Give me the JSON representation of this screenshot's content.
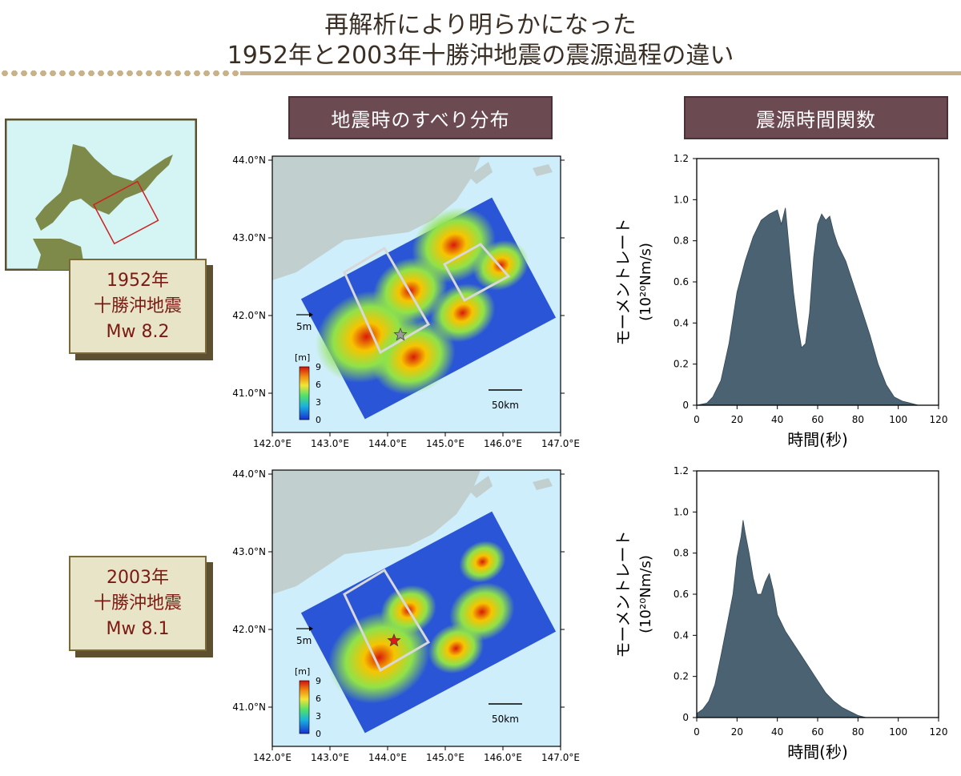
{
  "title": {
    "line1": "再解析により明らかになった",
    "line2": "1952年と2003年十勝沖地震の震源過程の違い"
  },
  "headers": {
    "slip": "地震時のすべり分布",
    "stf": "震源時間関数"
  },
  "events": [
    {
      "year": "1952年",
      "name": "十勝沖地震",
      "mag": "Mw 8.2"
    },
    {
      "year": "2003年",
      "name": "十勝沖地震",
      "mag": "Mw 8.1"
    }
  ],
  "map": {
    "lat_labels": [
      "44.0°N",
      "43.0°N",
      "42.0°N",
      "41.0°N"
    ],
    "lon_labels": [
      "142.0°E",
      "143.0°E",
      "144.0°E",
      "145.0°E",
      "146.0°E",
      "147.0°E"
    ],
    "arrow_label": "5m",
    "scale_label": "50km",
    "colorbar_unit": "[m]",
    "colorbar_ticks": [
      "9",
      "6",
      "3",
      "0"
    ]
  },
  "chart_data": [
    {
      "type": "area",
      "event": "1952",
      "xlabel": "時間(秒)",
      "ylabel": "モーメントレート",
      "yunit": "(10²⁰Nm/s)",
      "xlim": [
        0,
        120
      ],
      "ylim": [
        0,
        1.2
      ],
      "xticks": [
        "0",
        "20",
        "40",
        "60",
        "80",
        "100",
        "120"
      ],
      "yticks": [
        "0",
        "0.2",
        "0.4",
        "0.6",
        "0.8",
        "1.0",
        "1.2"
      ],
      "x": [
        0,
        5,
        8,
        12,
        16,
        20,
        24,
        28,
        32,
        36,
        40,
        42,
        44,
        46,
        48,
        50,
        52,
        54,
        56,
        58,
        60,
        62,
        64,
        66,
        68,
        70,
        74,
        78,
        82,
        86,
        90,
        94,
        98,
        102,
        106,
        110
      ],
      "y": [
        0,
        0.01,
        0.04,
        0.12,
        0.3,
        0.55,
        0.7,
        0.82,
        0.9,
        0.93,
        0.95,
        0.88,
        0.96,
        0.75,
        0.55,
        0.4,
        0.28,
        0.3,
        0.45,
        0.72,
        0.88,
        0.93,
        0.9,
        0.92,
        0.84,
        0.78,
        0.7,
        0.58,
        0.46,
        0.34,
        0.2,
        0.1,
        0.04,
        0.02,
        0.01,
        0
      ]
    },
    {
      "type": "area",
      "event": "2003",
      "xlabel": "時間(秒)",
      "ylabel": "モーメントレート",
      "yunit": "(10²⁰Nm/s)",
      "xlim": [
        0,
        120
      ],
      "ylim": [
        0,
        1.2
      ],
      "xticks": [
        "0",
        "20",
        "40",
        "60",
        "80",
        "100",
        "120"
      ],
      "yticks": [
        "0",
        "0.2",
        "0.4",
        "0.6",
        "0.8",
        "1.0",
        "1.2"
      ],
      "x": [
        0,
        3,
        6,
        9,
        12,
        15,
        18,
        20,
        22,
        23,
        24,
        26,
        28,
        30,
        32,
        34,
        36,
        38,
        40,
        44,
        48,
        52,
        56,
        60,
        64,
        68,
        72,
        76,
        80,
        84
      ],
      "y": [
        0.02,
        0.04,
        0.08,
        0.16,
        0.3,
        0.45,
        0.6,
        0.78,
        0.88,
        0.96,
        0.9,
        0.8,
        0.68,
        0.6,
        0.6,
        0.66,
        0.7,
        0.62,
        0.5,
        0.42,
        0.36,
        0.3,
        0.24,
        0.18,
        0.12,
        0.08,
        0.05,
        0.03,
        0.01,
        0
      ]
    }
  ]
}
